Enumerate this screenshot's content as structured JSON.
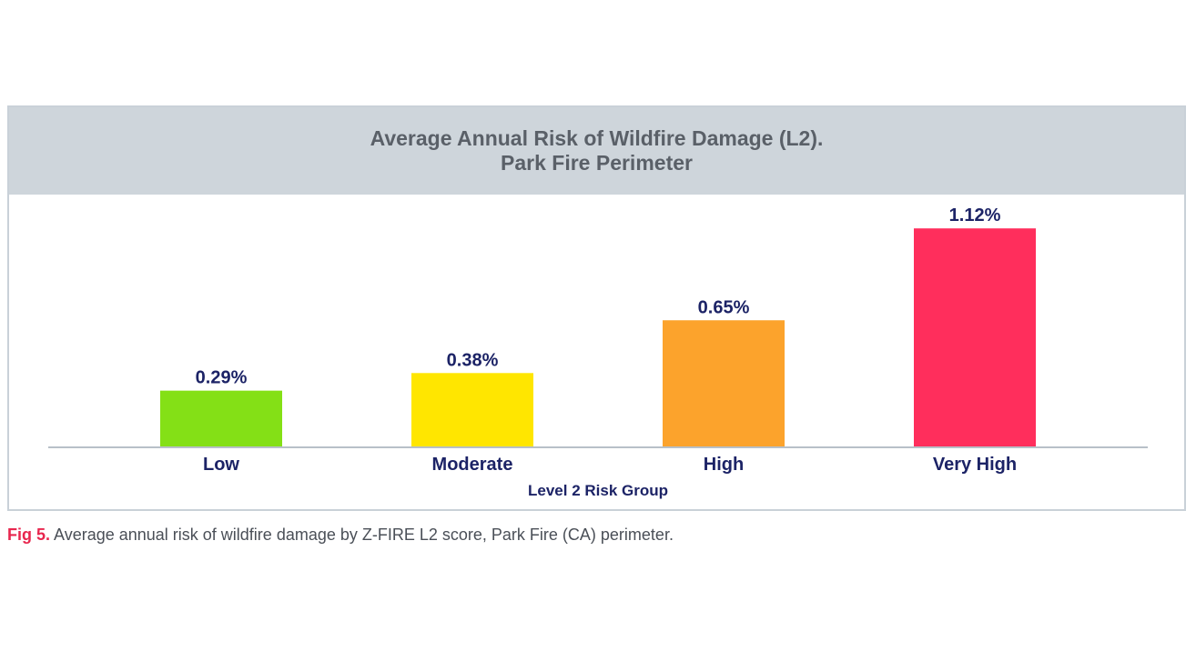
{
  "chart_data": {
    "type": "bar",
    "title": "Average Annual Risk of Wildfire Damage (L2).",
    "subtitle": "Park Fire Perimeter",
    "categories": [
      "Low",
      "Moderate",
      "High",
      "Very High"
    ],
    "values": [
      0.29,
      0.38,
      0.65,
      1.12
    ],
    "value_labels": [
      "0.29%",
      "0.38%",
      "0.65%",
      "1.12%"
    ],
    "bar_colors": [
      "#84e016",
      "#ffe600",
      "#fca32c",
      "#ff2e5c"
    ],
    "xlabel": "Level 2 Risk Group",
    "ylabel": "",
    "ylim": [
      0,
      1.2
    ],
    "grid": false,
    "legend": "none"
  },
  "caption": {
    "label": "Fig 5.",
    "text": " Average annual risk of wildfire damage by Z-FIRE L2 score, Park Fire (CA) perimeter."
  },
  "colors": {
    "header_bg": "#ced5db",
    "title_text": "#5a6068",
    "label_text": "#1c2366",
    "axis_line": "#b8c0c8",
    "caption_accent": "#e8264e"
  }
}
